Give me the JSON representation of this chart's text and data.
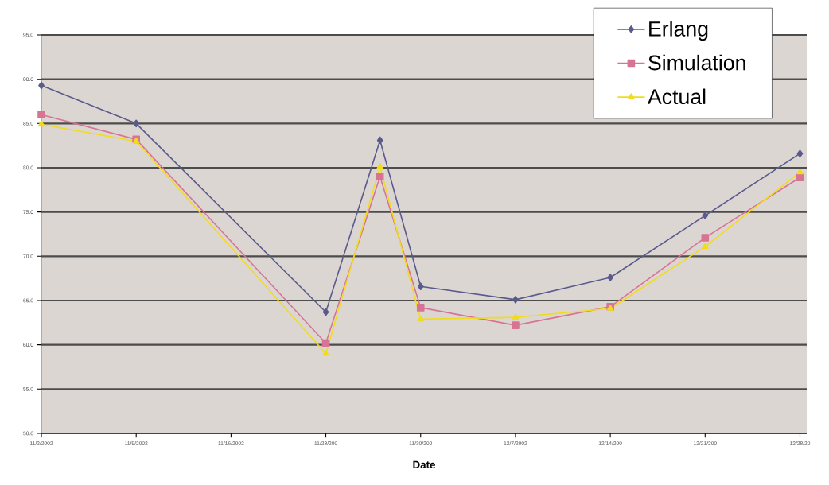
{
  "chart_data": {
    "type": "line",
    "xlabel": "Date",
    "x": [
      "2002-11-02",
      "2002-11-09",
      "2002-11-23",
      "2002-11-27",
      "2002-11-30",
      "2002-12-07",
      "2002-12-14",
      "2002-12-21",
      "2002-12-28"
    ],
    "series": [
      {
        "name": "Erlang",
        "color": "#5a5a8c",
        "marker": "diamond",
        "values": [
          89.3,
          85.0,
          63.7,
          83.1,
          66.6,
          65.1,
          67.6,
          74.6,
          81.6
        ]
      },
      {
        "name": "Simulation",
        "color": "#d87493",
        "marker": "square",
        "values": [
          86.0,
          83.2,
          60.2,
          79.0,
          64.2,
          62.2,
          64.3,
          72.1,
          78.9
        ]
      },
      {
        "name": "Actual",
        "color": "#f0dc1e",
        "marker": "triangle",
        "values": [
          84.9,
          83.0,
          59.0,
          80.1,
          62.9,
          63.1,
          64.1,
          71.1,
          79.5
        ]
      }
    ],
    "xlim": [
      "2002-11-02",
      "2002-12-28T12:00"
    ],
    "xticks": [
      {
        "value": "2002-11-02",
        "label": "11/2/2002"
      },
      {
        "value": "2002-11-09",
        "label": "11/9/2002"
      },
      {
        "value": "2002-11-16",
        "label": "11/16/2002"
      },
      {
        "value": "2002-11-23",
        "label": "11/23/200"
      },
      {
        "value": "2002-11-30",
        "label": "11/30/200"
      },
      {
        "value": "2002-12-07",
        "label": "12/7/2002"
      },
      {
        "value": "2002-12-14",
        "label": "12/14/200"
      },
      {
        "value": "2002-12-21",
        "label": "12/21/200"
      },
      {
        "value": "2002-12-28",
        "label": "12/28/20"
      }
    ],
    "ylim": [
      50,
      95
    ],
    "yticks": [
      {
        "value": 50,
        "label": "50.0"
      },
      {
        "value": 55,
        "label": "55.0"
      },
      {
        "value": 60,
        "label": "60.0"
      },
      {
        "value": 65,
        "label": "65.0"
      },
      {
        "value": 70,
        "label": "70.0"
      },
      {
        "value": 75,
        "label": "75.0"
      },
      {
        "value": 80,
        "label": "80.0"
      },
      {
        "value": 85,
        "label": "85.0"
      },
      {
        "value": 90,
        "label": "90.0"
      },
      {
        "value": 95,
        "label": "95.0"
      }
    ],
    "grid": "y",
    "legend": "top right",
    "line_style": "solid"
  }
}
